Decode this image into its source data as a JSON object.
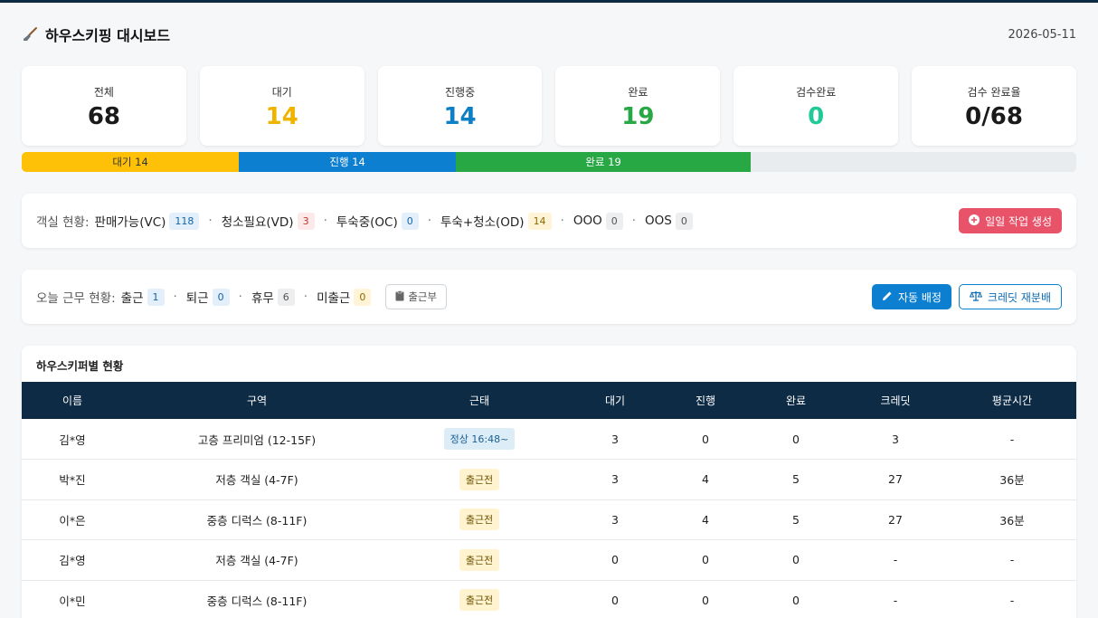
{
  "header": {
    "title": "하우스키핑 대시보드",
    "date": "2026-05-11"
  },
  "stats": [
    {
      "label": "전체",
      "value": "68",
      "color": "#1a1a1a"
    },
    {
      "label": "대기",
      "value": "14",
      "color": "#f0b400"
    },
    {
      "label": "진행중",
      "value": "14",
      "color": "#0d7fc4"
    },
    {
      "label": "완료",
      "value": "19",
      "color": "#28a745"
    },
    {
      "label": "검수완료",
      "value": "0",
      "color": "#20c997"
    },
    {
      "label": "검수 완료율",
      "value": "0/68",
      "color": "#1a1a1a"
    }
  ],
  "progress": {
    "wait": {
      "label": "대기 14",
      "fraction": 0.2059
    },
    "prog": {
      "label": "진행 14",
      "fraction": 0.2059
    },
    "done": {
      "label": "완료 19",
      "fraction": 0.2794
    }
  },
  "rooms": {
    "lead": "객실 현황:",
    "items": [
      {
        "name": "판매가능(VC)",
        "count": "118"
      },
      {
        "name": "청소필요(VD)",
        "count": "3"
      },
      {
        "name": "투숙중(OC)",
        "count": "0"
      },
      {
        "name": "투숙+청소(OD)",
        "count": "14"
      },
      {
        "name": "OOO",
        "count": "0"
      },
      {
        "name": "OOS",
        "count": "0"
      }
    ],
    "create_button": "일일 작업 생성"
  },
  "staff": {
    "lead": "오늘 근무 현황:",
    "items": [
      {
        "name": "출근",
        "count": "1"
      },
      {
        "name": "퇴근",
        "count": "0"
      },
      {
        "name": "휴무",
        "count": "6"
      },
      {
        "name": "미출근",
        "count": "0"
      }
    ],
    "attendance_button": "출근부",
    "auto_assign_button": "자동 배정",
    "redistribute_button": "크레딧 재분배"
  },
  "table": {
    "title": "하우스키퍼별 현황",
    "columns": [
      "이름",
      "구역",
      "근태",
      "대기",
      "진행",
      "완료",
      "크레딧",
      "평균시간"
    ],
    "rows": [
      {
        "name": "김*영",
        "zone": "고층 프리미엄 (12-15F)",
        "status": "정상 16:48~",
        "wait": "3",
        "prog": "0",
        "done": "0",
        "credit": "3",
        "avg": "-"
      },
      {
        "name": "박*진",
        "zone": "저층 객실 (4-7F)",
        "status": "출근전",
        "wait": "3",
        "prog": "4",
        "done": "5",
        "credit": "27",
        "avg": "36분"
      },
      {
        "name": "이*은",
        "zone": "중층 디럭스 (8-11F)",
        "status": "출근전",
        "wait": "3",
        "prog": "4",
        "done": "5",
        "credit": "27",
        "avg": "36분"
      },
      {
        "name": "김*영",
        "zone": "저층 객실 (4-7F)",
        "status": "출근전",
        "wait": "0",
        "prog": "0",
        "done": "0",
        "credit": "-",
        "avg": "-"
      },
      {
        "name": "이*민",
        "zone": "중층 디럭스 (8-11F)",
        "status": "출근전",
        "wait": "0",
        "prog": "0",
        "done": "0",
        "credit": "-",
        "avg": "-"
      }
    ]
  }
}
